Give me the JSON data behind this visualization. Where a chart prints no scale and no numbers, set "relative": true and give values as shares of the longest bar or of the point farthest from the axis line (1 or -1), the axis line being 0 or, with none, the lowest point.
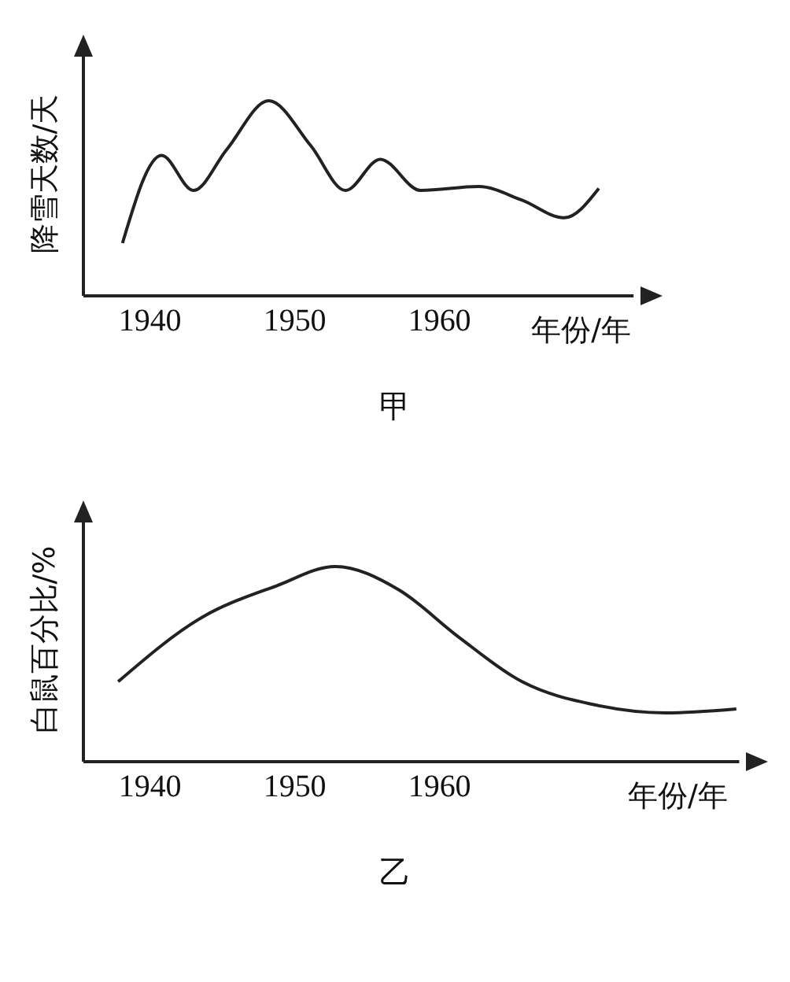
{
  "chart_data": [
    {
      "type": "line",
      "title": "甲",
      "xlabel": "年份/年",
      "ylabel": "降雪天数/天",
      "relative": true,
      "xlim": [
        1935.4,
        1973.4
      ],
      "xticks": [
        1940,
        1950,
        1960
      ],
      "grid": false,
      "legend": false,
      "marker": "none",
      "line_style": "solid",
      "series": [
        {
          "color": "#222222",
          "x": [
            1938.1,
            1940.8,
            1943.0,
            1945.3,
            1948.2,
            1951.1,
            1953.5,
            1955.9,
            1958.7,
            1962.7,
            1965.7,
            1968.6,
            1971.0
          ],
          "values": [
            0.27,
            0.72,
            0.54,
            0.75,
            1,
            0.77,
            0.54,
            0.7,
            0.54,
            0.56,
            0.49,
            0.4,
            0.55
          ]
        }
      ]
    },
    {
      "type": "line",
      "title": "乙",
      "xlabel": "年份/年",
      "ylabel": "白鼠百分比/%",
      "relative": true,
      "xlim": [
        1935.4,
        1980.7
      ],
      "xticks": [
        1940,
        1950,
        1960
      ],
      "grid": false,
      "legend": false,
      "marker": "none",
      "line_style": "solid",
      "series": [
        {
          "color": "#222222",
          "x": [
            1937.8,
            1943.6,
            1948.7,
            1952.8,
            1957.2,
            1961.3,
            1965.7,
            1970.8,
            1975.6,
            1980.5
          ],
          "values": [
            0.41,
            0.74,
            0.9,
            1,
            0.88,
            0.64,
            0.41,
            0.29,
            0.25,
            0.27
          ]
        }
      ]
    }
  ]
}
